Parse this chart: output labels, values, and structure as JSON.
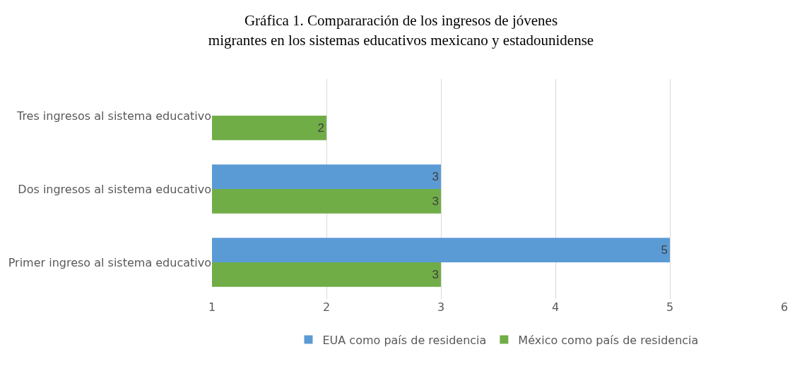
{
  "chart_data": {
    "type": "bar",
    "orientation": "horizontal",
    "title": "Gráfica 1. Compararación de los ingresos de jóvenes migrantes en los sistemas educativos mexicano y estadounidense",
    "categories": [
      "Tres ingresos al sistema educativo",
      "Dos ingresos al sistema educativo",
      "Primer ingreso al sistema educativo"
    ],
    "series": [
      {
        "name": "EUA como país de residencia",
        "color": "#5b9bd5",
        "values": [
          null,
          3,
          5
        ]
      },
      {
        "name": "México como país de residencia",
        "color": "#70ad47",
        "values": [
          2,
          3,
          3
        ]
      }
    ],
    "xlim": [
      1,
      6
    ],
    "xticks": [
      1,
      2,
      3,
      4,
      5,
      6
    ],
    "grid": "x",
    "legend": "bottom",
    "data_labels": true
  }
}
